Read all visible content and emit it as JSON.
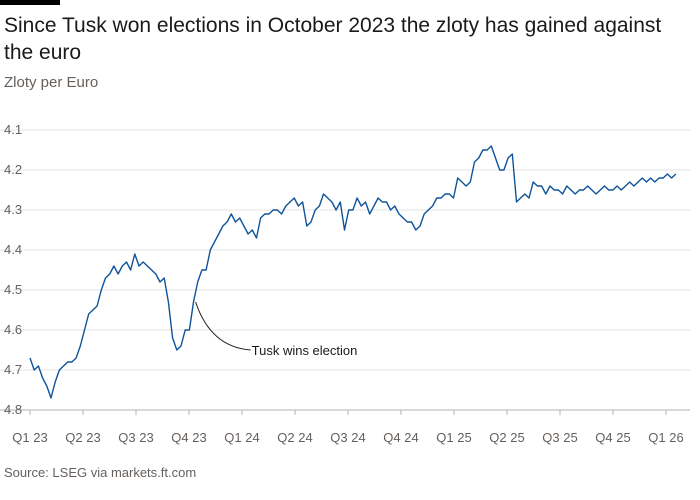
{
  "title": "Since Tusk won elections in October 2023 the zloty has gained against the euro",
  "subtitle": "Zloty per Euro",
  "source": "Source: LSEG via markets.ft.com",
  "colors": {
    "line": "#0f5499",
    "grid": "#e6e6e6",
    "topbar": "#000000"
  },
  "chart_data": {
    "type": "line",
    "y_axis_inverted": true,
    "ylim": [
      4.1,
      4.8
    ],
    "yticks": [
      "4.1",
      "4.2",
      "4.3",
      "4.4",
      "4.5",
      "4.6",
      "4.7",
      "4.8"
    ],
    "xticks": [
      "Q1 23",
      "Q2 23",
      "Q3 23",
      "Q4 23",
      "Q1 24",
      "Q2 24",
      "Q3 24",
      "Q4 24",
      "Q1 25",
      "Q2 25",
      "Q3 25",
      "Q4 25",
      "Q1 26"
    ],
    "grid": true,
    "annotation": {
      "label": "Tusk wins election",
      "x": 2023.79,
      "y": 4.53
    },
    "series": [
      {
        "values": [
          [
            2023.0,
            4.67
          ],
          [
            2023.02,
            4.7
          ],
          [
            2023.04,
            4.69
          ],
          [
            2023.06,
            4.72
          ],
          [
            2023.08,
            4.74
          ],
          [
            2023.1,
            4.77
          ],
          [
            2023.12,
            4.73
          ],
          [
            2023.14,
            4.7
          ],
          [
            2023.16,
            4.69
          ],
          [
            2023.18,
            4.68
          ],
          [
            2023.2,
            4.68
          ],
          [
            2023.22,
            4.67
          ],
          [
            2023.24,
            4.64
          ],
          [
            2023.26,
            4.6
          ],
          [
            2023.28,
            4.56
          ],
          [
            2023.3,
            4.55
          ],
          [
            2023.32,
            4.54
          ],
          [
            2023.34,
            4.5
          ],
          [
            2023.36,
            4.47
          ],
          [
            2023.38,
            4.46
          ],
          [
            2023.4,
            4.44
          ],
          [
            2023.42,
            4.46
          ],
          [
            2023.44,
            4.44
          ],
          [
            2023.46,
            4.43
          ],
          [
            2023.48,
            4.45
          ],
          [
            2023.5,
            4.41
          ],
          [
            2023.52,
            4.44
          ],
          [
            2023.54,
            4.43
          ],
          [
            2023.56,
            4.44
          ],
          [
            2023.58,
            4.45
          ],
          [
            2023.6,
            4.46
          ],
          [
            2023.62,
            4.48
          ],
          [
            2023.64,
            4.47
          ],
          [
            2023.66,
            4.53
          ],
          [
            2023.68,
            4.62
          ],
          [
            2023.7,
            4.65
          ],
          [
            2023.72,
            4.64
          ],
          [
            2023.74,
            4.6
          ],
          [
            2023.76,
            4.6
          ],
          [
            2023.78,
            4.53
          ],
          [
            2023.8,
            4.48
          ],
          [
            2023.82,
            4.45
          ],
          [
            2023.84,
            4.45
          ],
          [
            2023.86,
            4.4
          ],
          [
            2023.88,
            4.38
          ],
          [
            2023.9,
            4.36
          ],
          [
            2023.92,
            4.34
          ],
          [
            2023.94,
            4.33
          ],
          [
            2023.96,
            4.31
          ],
          [
            2023.98,
            4.33
          ],
          [
            2024.0,
            4.32
          ],
          [
            2024.02,
            4.34
          ],
          [
            2024.04,
            4.36
          ],
          [
            2024.06,
            4.35
          ],
          [
            2024.08,
            4.37
          ],
          [
            2024.1,
            4.32
          ],
          [
            2024.12,
            4.31
          ],
          [
            2024.14,
            4.31
          ],
          [
            2024.16,
            4.3
          ],
          [
            2024.18,
            4.3
          ],
          [
            2024.2,
            4.31
          ],
          [
            2024.22,
            4.29
          ],
          [
            2024.24,
            4.28
          ],
          [
            2024.26,
            4.27
          ],
          [
            2024.28,
            4.29
          ],
          [
            2024.3,
            4.28
          ],
          [
            2024.32,
            4.34
          ],
          [
            2024.34,
            4.33
          ],
          [
            2024.36,
            4.3
          ],
          [
            2024.38,
            4.29
          ],
          [
            2024.4,
            4.26
          ],
          [
            2024.42,
            4.27
          ],
          [
            2024.44,
            4.28
          ],
          [
            2024.46,
            4.3
          ],
          [
            2024.48,
            4.28
          ],
          [
            2024.5,
            4.35
          ],
          [
            2024.52,
            4.3
          ],
          [
            2024.54,
            4.3
          ],
          [
            2024.56,
            4.27
          ],
          [
            2024.58,
            4.29
          ],
          [
            2024.6,
            4.28
          ],
          [
            2024.62,
            4.31
          ],
          [
            2024.64,
            4.29
          ],
          [
            2024.66,
            4.27
          ],
          [
            2024.68,
            4.28
          ],
          [
            2024.7,
            4.28
          ],
          [
            2024.72,
            4.3
          ],
          [
            2024.74,
            4.29
          ],
          [
            2024.76,
            4.31
          ],
          [
            2024.78,
            4.32
          ],
          [
            2024.8,
            4.33
          ],
          [
            2024.82,
            4.33
          ],
          [
            2024.84,
            4.35
          ],
          [
            2024.86,
            4.34
          ],
          [
            2024.88,
            4.31
          ],
          [
            2024.9,
            4.3
          ],
          [
            2024.92,
            4.29
          ],
          [
            2024.94,
            4.27
          ],
          [
            2024.96,
            4.27
          ],
          [
            2024.98,
            4.26
          ],
          [
            2025.0,
            4.26
          ],
          [
            2025.02,
            4.27
          ],
          [
            2025.04,
            4.22
          ],
          [
            2025.06,
            4.23
          ],
          [
            2025.08,
            4.24
          ],
          [
            2025.1,
            4.23
          ],
          [
            2025.12,
            4.18
          ],
          [
            2025.14,
            4.17
          ],
          [
            2025.16,
            4.15
          ],
          [
            2025.18,
            4.15
          ],
          [
            2025.2,
            4.14
          ],
          [
            2025.22,
            4.17
          ],
          [
            2025.24,
            4.2
          ],
          [
            2025.26,
            4.2
          ],
          [
            2025.28,
            4.17
          ],
          [
            2025.3,
            4.16
          ],
          [
            2025.32,
            4.28
          ],
          [
            2025.34,
            4.27
          ],
          [
            2025.36,
            4.26
          ],
          [
            2025.38,
            4.27
          ],
          [
            2025.4,
            4.23
          ],
          [
            2025.42,
            4.24
          ],
          [
            2025.44,
            4.24
          ],
          [
            2025.46,
            4.26
          ],
          [
            2025.48,
            4.24
          ],
          [
            2025.5,
            4.25
          ],
          [
            2025.52,
            4.25
          ],
          [
            2025.54,
            4.26
          ],
          [
            2025.56,
            4.24
          ],
          [
            2025.58,
            4.25
          ],
          [
            2025.6,
            4.26
          ],
          [
            2025.62,
            4.25
          ],
          [
            2025.64,
            4.25
          ],
          [
            2025.66,
            4.24
          ],
          [
            2025.68,
            4.25
          ],
          [
            2025.7,
            4.26
          ],
          [
            2025.72,
            4.25
          ],
          [
            2025.74,
            4.24
          ],
          [
            2025.76,
            4.25
          ],
          [
            2025.78,
            4.25
          ],
          [
            2025.8,
            4.24
          ],
          [
            2025.82,
            4.25
          ],
          [
            2025.84,
            4.24
          ],
          [
            2025.86,
            4.23
          ],
          [
            2025.88,
            4.24
          ],
          [
            2025.9,
            4.23
          ],
          [
            2025.92,
            4.22
          ],
          [
            2025.94,
            4.23
          ],
          [
            2025.96,
            4.22
          ],
          [
            2025.98,
            4.23
          ],
          [
            2026.0,
            4.22
          ],
          [
            2026.02,
            4.22
          ],
          [
            2026.04,
            4.21
          ],
          [
            2026.06,
            4.22
          ],
          [
            2026.08,
            4.21
          ]
        ]
      }
    ]
  }
}
